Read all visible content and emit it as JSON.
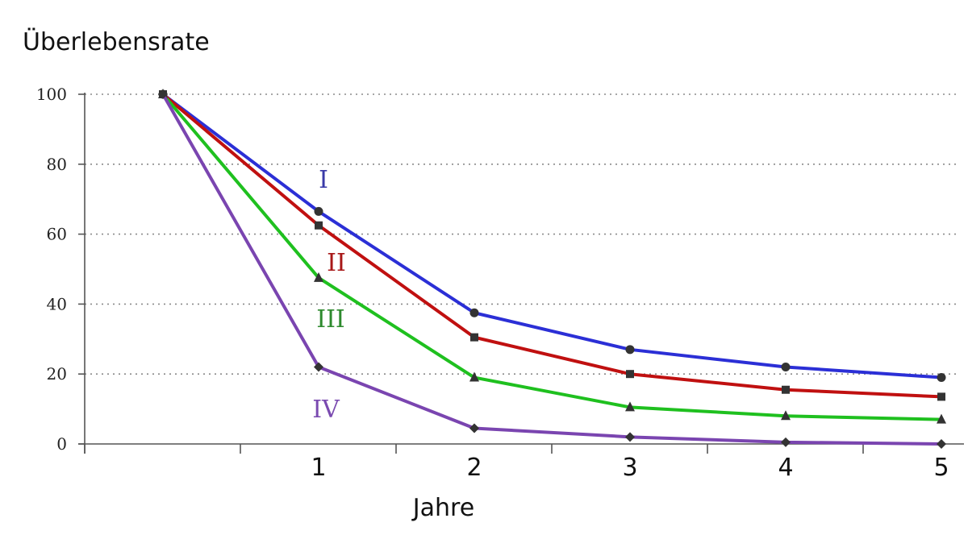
{
  "chart_data": {
    "type": "line",
    "ylabel": "Überlebensrate",
    "xlabel": "Jahre",
    "x": [
      0,
      1,
      2,
      3,
      4,
      5
    ],
    "x_tick_labels": [
      "",
      "1",
      "2",
      "3",
      "4",
      "5"
    ],
    "ylim": [
      0,
      100
    ],
    "y_ticks": [
      0,
      20,
      40,
      60,
      80,
      100
    ],
    "grid": "horizontal dotted",
    "series": [
      {
        "name": "I",
        "color": "#2b2fd6",
        "marker": "circle",
        "values": [
          100,
          66.5,
          37.5,
          27,
          22,
          19
        ]
      },
      {
        "name": "II",
        "color": "#c01010",
        "marker": "square",
        "values": [
          100,
          62.5,
          30.5,
          20,
          15.5,
          13.5
        ]
      },
      {
        "name": "III",
        "color": "#1fc01f",
        "marker": "triangle",
        "values": [
          100,
          47.5,
          19,
          10.5,
          8,
          7
        ]
      },
      {
        "name": "IV",
        "color": "#7a45b0",
        "marker": "diamond",
        "values": [
          100,
          22,
          4.5,
          2,
          0.5,
          0
        ]
      }
    ],
    "series_label_colors": [
      "#3a3aa8",
      "#a81818",
      "#2e8a2e",
      "#7a4ab0"
    ]
  }
}
